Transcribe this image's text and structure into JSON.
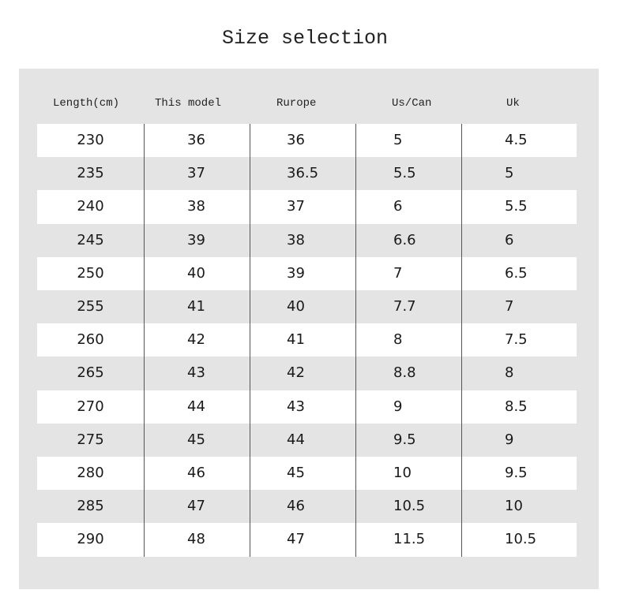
{
  "title": "Size selection",
  "table": {
    "headers": [
      "Length(cm)",
      "This model",
      "Rurope",
      "Us/Can",
      "Uk"
    ],
    "rows": [
      [
        "230",
        "36",
        "36",
        "5",
        "4.5"
      ],
      [
        "235",
        "37",
        "36.5",
        "5.5",
        "5"
      ],
      [
        "240",
        "38",
        "37",
        "6",
        "5.5"
      ],
      [
        "245",
        "39",
        "38",
        "6.6",
        "6"
      ],
      [
        "250",
        "40",
        "39",
        "7",
        "6.5"
      ],
      [
        "255",
        "41",
        "40",
        "7.7",
        "7"
      ],
      [
        "260",
        "42",
        "41",
        "8",
        "7.5"
      ],
      [
        "265",
        "43",
        "42",
        "8.8",
        "8"
      ],
      [
        "270",
        "44",
        "43",
        "9",
        "8.5"
      ],
      [
        "275",
        "45",
        "44",
        "9.5",
        "9"
      ],
      [
        "280",
        "46",
        "45",
        "10",
        "9.5"
      ],
      [
        "285",
        "47",
        "46",
        "10.5",
        "10"
      ],
      [
        "290",
        "48",
        "47",
        "11.5",
        "10.5"
      ]
    ]
  },
  "colors": {
    "panel": "#e4e4e4",
    "row_alt": "#ffffff",
    "divider": "#555555"
  }
}
